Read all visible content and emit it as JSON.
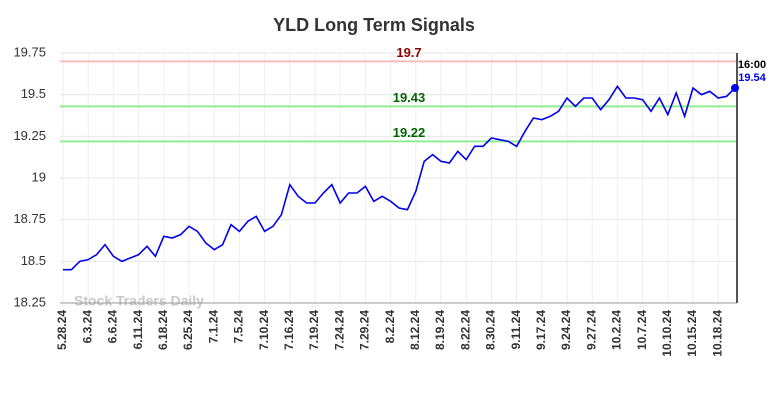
{
  "chart_data": {
    "type": "line",
    "title": "YLD Long Term Signals",
    "categories": [
      "5.28.24",
      null,
      null,
      "6.3.24",
      null,
      null,
      "6.6.24",
      null,
      null,
      "6.11.24",
      null,
      null,
      "6.18.24",
      null,
      null,
      "6.25.24",
      null,
      null,
      "7.1.24",
      null,
      null,
      "7.5.24",
      null,
      null,
      "7.10.24",
      null,
      null,
      "7.16.24",
      null,
      null,
      "7.19.24",
      null,
      null,
      "7.24.24",
      null,
      null,
      "7.29.24",
      null,
      null,
      "8.2.24",
      null,
      null,
      "8.12.24",
      null,
      null,
      "8.19.24",
      null,
      null,
      "8.22.24",
      null,
      null,
      "8.30.24",
      null,
      null,
      "9.11.24",
      null,
      null,
      "9.17.24",
      null,
      null,
      "9.24.24",
      null,
      null,
      "9.27.24",
      null,
      null,
      "10.2.24",
      null,
      null,
      "10.7.24",
      null,
      null,
      "10.10.24",
      null,
      null,
      "10.15.24",
      null,
      null,
      "10.18.24",
      null,
      null
    ],
    "values": [
      18.45,
      18.45,
      18.5,
      18.51,
      18.54,
      18.6,
      18.53,
      18.5,
      18.52,
      18.54,
      18.59,
      18.53,
      18.65,
      18.64,
      18.66,
      18.71,
      18.68,
      18.61,
      18.57,
      18.6,
      18.72,
      18.68,
      18.74,
      18.77,
      18.68,
      18.71,
      18.78,
      18.96,
      18.89,
      18.85,
      18.85,
      18.91,
      18.96,
      18.85,
      18.91,
      18.91,
      18.95,
      18.86,
      18.89,
      18.86,
      18.82,
      18.81,
      18.92,
      19.1,
      19.14,
      19.1,
      19.09,
      19.16,
      19.11,
      19.19,
      19.19,
      19.24,
      19.23,
      19.22,
      19.19,
      19.28,
      19.36,
      19.35,
      19.37,
      19.4,
      19.48,
      19.43,
      19.48,
      19.48,
      19.41,
      19.47,
      19.55,
      19.48,
      19.48,
      19.47,
      19.4,
      19.48,
      19.38,
      19.51,
      19.37,
      19.54,
      19.5,
      19.52,
      19.48,
      19.49,
      19.54
    ],
    "color": "#0000ee",
    "ylim": [
      18.25,
      19.75
    ],
    "yticks": [
      18.25,
      18.5,
      18.75,
      19,
      19.25,
      19.5,
      19.75
    ],
    "grid": true,
    "reference_lines": [
      {
        "value": 19.7,
        "color": "#f7bcbc",
        "label_color": "#8b0000"
      },
      {
        "value": 19.43,
        "color": "#90ee90",
        "label_color": "#006400"
      },
      {
        "value": 19.22,
        "color": "#90ee90",
        "label_color": "#006400"
      }
    ],
    "last_time": "16:00",
    "watermark": "Stock Traders Daily"
  }
}
